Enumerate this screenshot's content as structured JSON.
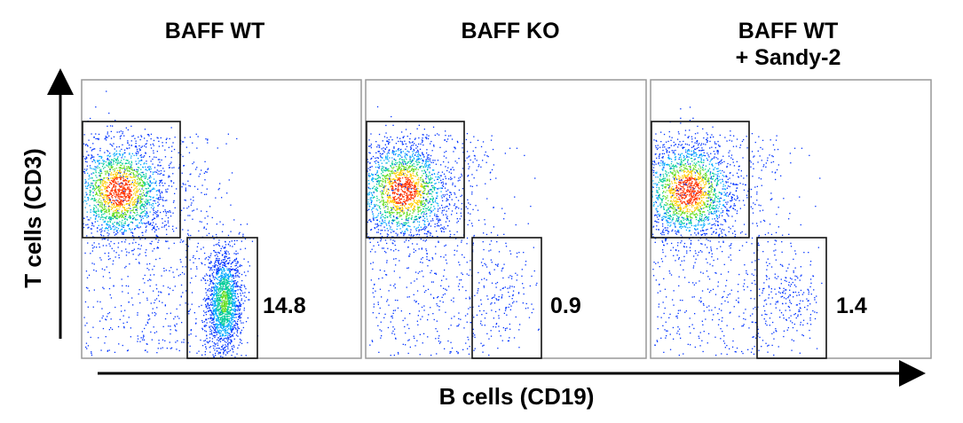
{
  "chart_data": {
    "type": "scatter",
    "xlabel": "B cells (CD19)",
    "ylabel": "T cells (CD3)",
    "panels": [
      {
        "title_lines": [
          "BAFF WT"
        ],
        "gates": [
          {
            "population": "T cells",
            "label": ""
          },
          {
            "population": "B cells",
            "label": "14.8"
          }
        ],
        "b_cell_percent": 14.8
      },
      {
        "title_lines": [
          "BAFF KO"
        ],
        "gates": [
          {
            "population": "T cells",
            "label": ""
          },
          {
            "population": "B cells",
            "label": "0.9"
          }
        ],
        "b_cell_percent": 0.9
      },
      {
        "title_lines": [
          "BAFF WT",
          "+ Sandy-2"
        ],
        "gates": [
          {
            "population": "T cells",
            "label": ""
          },
          {
            "population": "B cells",
            "label": "1.4"
          }
        ],
        "b_cell_percent": 1.4
      }
    ]
  }
}
